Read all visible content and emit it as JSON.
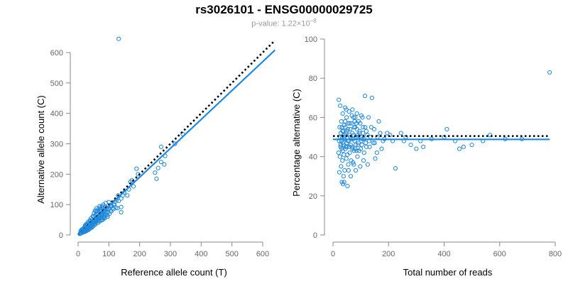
{
  "title": "rs3026101 - ENSG00000029725",
  "subtitle": {
    "prefix": "p-value: 1.22×10",
    "exponent": "−8"
  },
  "colors": {
    "points": "#1f87d8",
    "fit": "#1e88e5",
    "reference": "#000000",
    "axis": "#888888"
  },
  "chart_data": [
    {
      "type": "scatter",
      "title": "",
      "xlabel": "Reference allele count (T)",
      "ylabel": "Alternative allele count (C)",
      "xlim": [
        0,
        650
      ],
      "ylim": [
        0,
        650
      ],
      "xticks": [
        0,
        100,
        200,
        300,
        400,
        500,
        600
      ],
      "yticks": [
        0,
        100,
        200,
        300,
        400,
        500,
        600
      ],
      "points": [
        [
          132,
          645
        ],
        [
          270,
          290
        ],
        [
          340,
          332
        ],
        [
          315,
          300
        ],
        [
          283,
          260
        ],
        [
          270,
          240
        ],
        [
          280,
          232
        ],
        [
          260,
          220
        ],
        [
          250,
          205
        ],
        [
          255,
          185
        ],
        [
          190,
          218
        ],
        [
          195,
          200
        ],
        [
          175,
          180
        ],
        [
          180,
          160
        ],
        [
          170,
          175
        ],
        [
          165,
          150
        ],
        [
          150,
          140
        ],
        [
          160,
          130
        ],
        [
          145,
          130
        ],
        [
          140,
          120
        ],
        [
          130,
          130
        ],
        [
          132,
          112
        ],
        [
          125,
          115
        ],
        [
          118,
          100
        ],
        [
          123,
          90
        ],
        [
          115,
          85
        ],
        [
          128,
          88
        ],
        [
          140,
          75
        ],
        [
          140,
          92
        ],
        [
          110,
          95
        ],
        [
          105,
          80
        ],
        [
          98,
          75
        ],
        [
          95,
          65
        ],
        [
          92,
          72
        ],
        [
          88,
          70
        ],
        [
          85,
          62
        ],
        [
          80,
          55
        ],
        [
          78,
          68
        ],
        [
          72,
          62
        ],
        [
          70,
          58
        ],
        [
          68,
          55
        ],
        [
          65,
          50
        ],
        [
          62,
          48
        ],
        [
          60,
          55
        ],
        [
          58,
          42
        ],
        [
          55,
          45
        ],
        [
          52,
          40
        ],
        [
          50,
          38
        ],
        [
          48,
          42
        ],
        [
          45,
          35
        ],
        [
          42,
          30
        ],
        [
          40,
          32
        ],
        [
          38,
          28
        ],
        [
          35,
          25
        ],
        [
          32,
          22
        ],
        [
          30,
          20
        ],
        [
          28,
          18
        ],
        [
          25,
          18
        ],
        [
          22,
          15
        ],
        [
          20,
          12
        ],
        [
          18,
          14
        ],
        [
          15,
          10
        ],
        [
          12,
          8
        ],
        [
          10,
          6
        ],
        [
          8,
          5
        ],
        [
          6,
          4
        ],
        [
          14,
          12
        ],
        [
          16,
          9
        ],
        [
          24,
          14
        ],
        [
          26,
          22
        ],
        [
          34,
          30
        ],
        [
          36,
          20
        ],
        [
          44,
          38
        ],
        [
          46,
          28
        ],
        [
          54,
          52
        ],
        [
          56,
          35
        ],
        [
          64,
          60
        ],
        [
          66,
          45
        ],
        [
          74,
          70
        ],
        [
          76,
          50
        ],
        [
          84,
          80
        ],
        [
          86,
          55
        ],
        [
          94,
          90
        ],
        [
          96,
          60
        ],
        [
          100,
          85
        ],
        [
          102,
          70
        ],
        [
          108,
          78
        ],
        [
          112,
          88
        ],
        [
          30,
          35
        ],
        [
          25,
          30
        ],
        [
          20,
          25
        ],
        [
          40,
          45
        ],
        [
          35,
          40
        ],
        [
          45,
          50
        ],
        [
          50,
          60
        ],
        [
          55,
          65
        ],
        [
          60,
          70
        ],
        [
          65,
          75
        ],
        [
          70,
          80
        ],
        [
          75,
          85
        ],
        [
          80,
          90
        ],
        [
          15,
          18
        ],
        [
          18,
          22
        ],
        [
          22,
          28
        ],
        [
          28,
          25
        ],
        [
          33,
          30
        ],
        [
          37,
          36
        ],
        [
          43,
          40
        ],
        [
          47,
          44
        ],
        [
          53,
          48
        ],
        [
          57,
          50
        ],
        [
          63,
          58
        ],
        [
          67,
          62
        ],
        [
          73,
          66
        ],
        [
          77,
          72
        ],
        [
          83,
          76
        ],
        [
          87,
          82
        ],
        [
          90,
          65
        ],
        [
          52,
          72
        ],
        [
          58,
          78
        ],
        [
          48,
          62
        ],
        [
          42,
          55
        ],
        [
          38,
          48
        ],
        [
          32,
          42
        ],
        [
          27,
          36
        ],
        [
          23,
          32
        ],
        [
          12,
          18
        ],
        [
          10,
          15
        ],
        [
          8,
          12
        ],
        [
          60,
          45
        ],
        [
          55,
          38
        ],
        [
          50,
          30
        ],
        [
          45,
          25
        ],
        [
          40,
          22
        ],
        [
          35,
          18
        ],
        [
          30,
          15
        ],
        [
          25,
          12
        ],
        [
          20,
          10
        ],
        [
          65,
          40
        ],
        [
          70,
          45
        ],
        [
          75,
          48
        ],
        [
          80,
          50
        ],
        [
          85,
          58
        ],
        [
          66,
          85
        ],
        [
          70,
          95
        ],
        [
          60,
          88
        ],
        [
          55,
          80
        ],
        [
          82,
          100
        ],
        [
          90,
          105
        ],
        [
          100,
          108
        ],
        [
          107,
          95
        ],
        [
          115,
          100
        ],
        [
          120,
          110
        ],
        [
          95,
          85
        ],
        [
          88,
          92
        ],
        [
          78,
          95
        ],
        [
          72,
          90
        ],
        [
          62,
          80
        ]
      ],
      "fit": {
        "x": [
          0,
          640
        ],
        "y": [
          0,
          608
        ]
      },
      "reference": {
        "x": [
          0,
          640
        ],
        "y": [
          0,
          640
        ]
      }
    },
    {
      "type": "scatter",
      "title": "",
      "xlabel": "Total number of reads",
      "ylabel": "Percentage alternative (C)",
      "xlim": [
        0,
        800
      ],
      "ylim": [
        0,
        100
      ],
      "xticks": [
        0,
        200,
        400,
        600,
        800
      ],
      "yticks": [
        0,
        20,
        40,
        60,
        80,
        100
      ],
      "points": [
        [
          780,
          83
        ],
        [
          620,
          49
        ],
        [
          680,
          49
        ],
        [
          565,
          51
        ],
        [
          540,
          48
        ],
        [
          500,
          46
        ],
        [
          470,
          45
        ],
        [
          455,
          44
        ],
        [
          440,
          48
        ],
        [
          410,
          54
        ],
        [
          400,
          50
        ],
        [
          355,
          49
        ],
        [
          325,
          45
        ],
        [
          315,
          48
        ],
        [
          300,
          44
        ],
        [
          280,
          46
        ],
        [
          262,
          50
        ],
        [
          255,
          48
        ],
        [
          245,
          52
        ],
        [
          225,
          34
        ],
        [
          215,
          48
        ],
        [
          205,
          51
        ],
        [
          195,
          52
        ],
        [
          185,
          49
        ],
        [
          175,
          44
        ],
        [
          165,
          58
        ],
        [
          158,
          42
        ],
        [
          152,
          39
        ],
        [
          148,
          54
        ],
        [
          145,
          47
        ],
        [
          140,
          70
        ],
        [
          135,
          50
        ],
        [
          132,
          45
        ],
        [
          128,
          60
        ],
        [
          125,
          36
        ],
        [
          120,
          53
        ],
        [
          118,
          47
        ],
        [
          115,
          71
        ],
        [
          112,
          42
        ],
        [
          110,
          38
        ],
        [
          108,
          55
        ],
        [
          105,
          49
        ],
        [
          102,
          61
        ],
        [
          100,
          44
        ],
        [
          98,
          35
        ],
        [
          95,
          52
        ],
        [
          92,
          58
        ],
        [
          90,
          46
        ],
        [
          88,
          40
        ],
        [
          86,
          62
        ],
        [
          84,
          50
        ],
        [
          82,
          33
        ],
        [
          80,
          55
        ],
        [
          78,
          48
        ],
        [
          76,
          43
        ],
        [
          74,
          60
        ],
        [
          72,
          37
        ],
        [
          70,
          52
        ],
        [
          68,
          45
        ],
        [
          66,
          57
        ],
        [
          64,
          30
        ],
        [
          62,
          50
        ],
        [
          60,
          42
        ],
        [
          58,
          63
        ],
        [
          56,
          48
        ],
        [
          55,
          36
        ],
        [
          54,
          54
        ],
        [
          52,
          25
        ],
        [
          50,
          47
        ],
        [
          49,
          60
        ],
        [
          48,
          39
        ],
        [
          46,
          52
        ],
        [
          45,
          44
        ],
        [
          44,
          65
        ],
        [
          42,
          33
        ],
        [
          41,
          49
        ],
        [
          40,
          56
        ],
        [
          39,
          41
        ],
        [
          38,
          30
        ],
        [
          37,
          53
        ],
        [
          36,
          47
        ],
        [
          35,
          62
        ],
        [
          34,
          38
        ],
        [
          33,
          50
        ],
        [
          32,
          27
        ],
        [
          31,
          44
        ],
        [
          30,
          58
        ],
        [
          29,
          35
        ],
        [
          28,
          52
        ],
        [
          27,
          45
        ],
        [
          26,
          66
        ],
        [
          25,
          40
        ],
        [
          24,
          55
        ],
        [
          23,
          32
        ],
        [
          22,
          48
        ],
        [
          21,
          69
        ],
        [
          20,
          42
        ],
        [
          36,
          26
        ],
        [
          40,
          27
        ],
        [
          44,
          58
        ],
        [
          48,
          64
        ],
        [
          52,
          41
        ],
        [
          56,
          33
        ],
        [
          60,
          57
        ],
        [
          64,
          46
        ],
        [
          68,
          61
        ],
        [
          72,
          49
        ],
        [
          76,
          55
        ],
        [
          80,
          44
        ],
        [
          84,
          57
        ],
        [
          88,
          51
        ],
        [
          92,
          47
        ],
        [
          96,
          53
        ],
        [
          100,
          50
        ],
        [
          104,
          46
        ],
        [
          108,
          52
        ],
        [
          112,
          49
        ],
        [
          116,
          55
        ],
        [
          120,
          45
        ],
        [
          124,
          51
        ],
        [
          30,
          48
        ],
        [
          34,
          53
        ],
        [
          38,
          46
        ],
        [
          42,
          51
        ],
        [
          46,
          45
        ],
        [
          50,
          53
        ],
        [
          54,
          48
        ],
        [
          58,
          45
        ],
        [
          62,
          54
        ],
        [
          66,
          49
        ],
        [
          70,
          44
        ],
        [
          74,
          51
        ],
        [
          78,
          58
        ],
        [
          82,
          46
        ],
        [
          86,
          54
        ],
        [
          90,
          50
        ],
        [
          94,
          43
        ],
        [
          98,
          57
        ],
        [
          102,
          48
        ],
        [
          106,
          60
        ],
        [
          25,
          50
        ],
        [
          28,
          46
        ],
        [
          32,
          55
        ],
        [
          35,
          43
        ],
        [
          40,
          50
        ],
        [
          45,
          55
        ],
        [
          50,
          45
        ],
        [
          55,
          57
        ],
        [
          60,
          51
        ],
        [
          65,
          38
        ],
        [
          70,
          64
        ],
        [
          75,
          36
        ],
        [
          80,
          60
        ],
        [
          85,
          43
        ],
        [
          130,
          48
        ],
        [
          138,
          55
        ],
        [
          150,
          47
        ],
        [
          160,
          50
        ],
        [
          170,
          52
        ],
        [
          180,
          48
        ]
      ],
      "fit": {
        "x": [
          0,
          780
        ],
        "y": [
          48.8,
          48.8
        ]
      },
      "reference": {
        "x": [
          0,
          780
        ],
        "y": [
          50.5,
          50.5
        ]
      }
    }
  ]
}
